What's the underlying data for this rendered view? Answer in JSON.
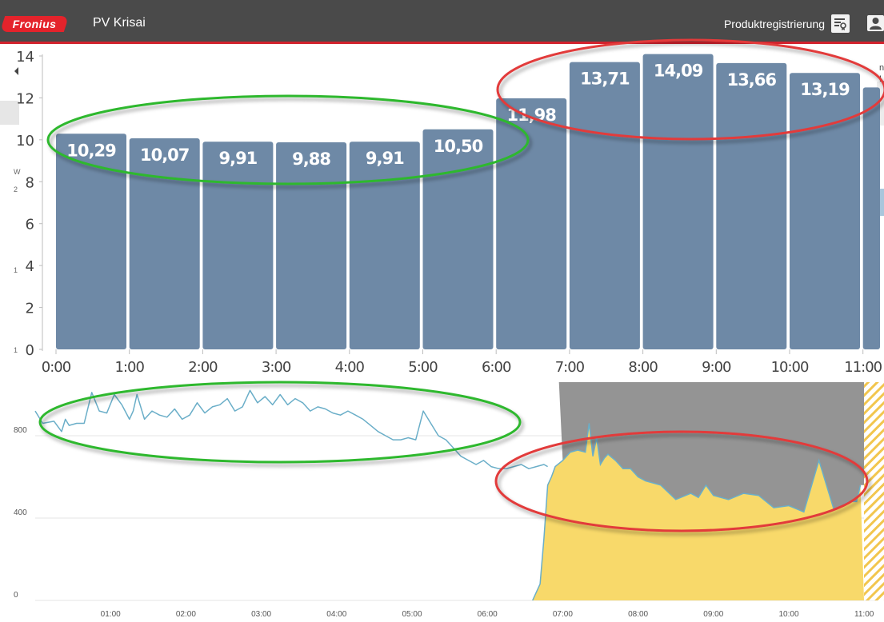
{
  "header": {
    "logo_text": "Fronius",
    "app_title": "PV Krisai",
    "registration_label": "Produktregistrierung"
  },
  "side_labels": [
    "W",
    "2",
    "1",
    "1"
  ],
  "right_edge_text": [
    "n",
    "L"
  ],
  "colors": {
    "header_bg": "#4a4a4a",
    "accent_red": "#d2222d",
    "bar_fill": "#6e89a6",
    "pv_yellow": "#f8d96a",
    "grid_grey": "#949494",
    "load_line": "#6aaec8",
    "annotation_green": "#2db82d",
    "annotation_red": "#e23a3a"
  },
  "chart_data": [
    {
      "type": "bar",
      "categories": [
        "0:00",
        "1:00",
        "2:00",
        "3:00",
        "4:00",
        "5:00",
        "6:00",
        "7:00",
        "8:00",
        "9:00",
        "10:00",
        "11:00"
      ],
      "values": [
        10.29,
        10.07,
        9.91,
        9.88,
        9.91,
        10.5,
        11.98,
        13.71,
        14.09,
        13.66,
        13.19,
        12.5
      ],
      "data_labels": [
        "10,29",
        "10,07",
        "9,91",
        "9,88",
        "9,91",
        "10,50",
        "11,98",
        "13,71",
        "14,09",
        "13,66",
        "13,19",
        ""
      ],
      "x_tick_labels": [
        "0:00",
        "1:00",
        "2:00",
        "3:00",
        "4:00",
        "5:00",
        "6:00",
        "7:00",
        "8:00",
        "9:00",
        "10:00",
        "11:00"
      ],
      "y_ticks": [
        "0",
        "2",
        "4",
        "6",
        "8",
        "10",
        "12",
        "14"
      ],
      "ylim": [
        0,
        14
      ],
      "grid": false
    },
    {
      "type": "area",
      "x_tick_labels": [
        "01:00",
        "02:00",
        "03:00",
        "04:00",
        "05:00",
        "06:00",
        "07:00",
        "08:00",
        "09:00",
        "10:00",
        "11:00"
      ],
      "y_ticks": [
        "0",
        "400",
        "800"
      ],
      "ylim": [
        0,
        1060
      ],
      "grid": true,
      "series": [
        {
          "kind": "line",
          "x": [
            0,
            0.1,
            0.25,
            0.35,
            0.4,
            0.45,
            0.55,
            0.65,
            0.75,
            0.85,
            0.95,
            1.05,
            1.15,
            1.25,
            1.3,
            1.35,
            1.45,
            1.55,
            1.65,
            1.75,
            1.85,
            1.95,
            2.05,
            2.15,
            2.25,
            2.35,
            2.45,
            2.55,
            2.65,
            2.75,
            2.85,
            2.95,
            3.05,
            3.15,
            3.25,
            3.35,
            3.45,
            3.55,
            3.65,
            3.75,
            3.85,
            3.95,
            4.05,
            4.15,
            4.25,
            4.35,
            4.45,
            4.55,
            4.65,
            4.75,
            4.85,
            4.95,
            5.05,
            5.15,
            5.25,
            5.35,
            5.45,
            5.55,
            5.65,
            5.75,
            5.85,
            5.95,
            6.05,
            6.15,
            6.25,
            6.35,
            6.45,
            6.55,
            6.65,
            6.75,
            6.8
          ],
          "y": [
            920,
            860,
            870,
            820,
            880,
            850,
            860,
            860,
            1010,
            920,
            910,
            1000,
            950,
            880,
            920,
            1000,
            880,
            920,
            900,
            890,
            930,
            880,
            900,
            960,
            910,
            940,
            950,
            980,
            920,
            940,
            1020,
            960,
            990,
            950,
            1000,
            950,
            980,
            960,
            920,
            940,
            930,
            910,
            900,
            920,
            900,
            880,
            850,
            820,
            800,
            780,
            780,
            790,
            780,
            920,
            860,
            800,
            780,
            740,
            700,
            680,
            660,
            680,
            650,
            640,
            640,
            650,
            660,
            640,
            650,
            660,
            650
          ]
        },
        {
          "kind": "pv_area",
          "x": [
            6.6,
            6.7,
            6.75,
            6.8,
            6.85,
            6.9,
            7.0,
            7.1,
            7.2,
            7.3,
            7.35,
            7.4,
            7.45,
            7.5,
            7.55,
            7.6,
            7.7,
            7.8,
            7.9,
            8.0,
            8.1,
            8.3,
            8.5,
            8.7,
            8.8,
            8.9,
            9.0,
            9.2,
            9.4,
            9.6,
            9.8,
            10.0,
            10.2,
            10.4,
            10.6,
            10.8,
            10.9,
            10.95
          ],
          "y": [
            0,
            80,
            300,
            560,
            600,
            650,
            680,
            720,
            730,
            720,
            860,
            700,
            790,
            660,
            690,
            710,
            680,
            640,
            640,
            600,
            580,
            560,
            490,
            520,
            500,
            560,
            510,
            490,
            520,
            510,
            450,
            460,
            430,
            680,
            440,
            480,
            480,
            560
          ]
        }
      ]
    }
  ]
}
